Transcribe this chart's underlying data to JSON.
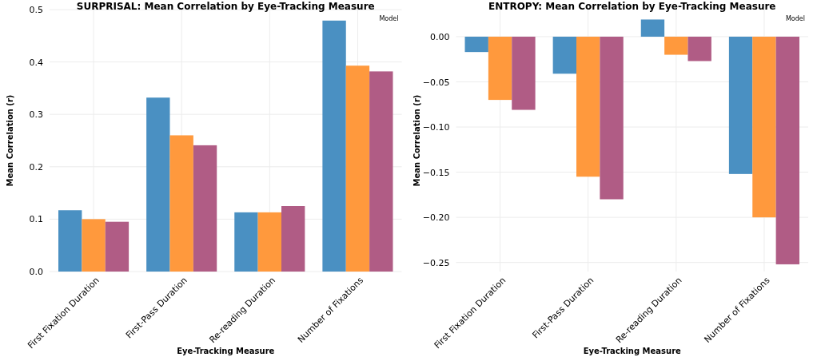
{
  "chart_data": [
    {
      "type": "bar",
      "title": "SURPRISAL: Mean Correlation by Eye-Tracking Measure",
      "xlabel": "Eye-Tracking Measure",
      "ylabel": "Mean Correlation (r)",
      "legend_title": "Model",
      "grid": true,
      "categories": [
        "First Fixation Duration",
        "First-Pass Duration",
        "Re-reading Duration",
        "Number of Fixations"
      ],
      "ylim": [
        0,
        0.5
      ],
      "yticks": [
        {
          "value": 0,
          "label": "0.0"
        },
        0.1,
        0.2,
        0.3,
        0.4,
        0.5
      ],
      "series": [
        {
          "color": "#4a90c2",
          "values": [
            0.117,
            0.332,
            0.113,
            0.479
          ]
        },
        {
          "color": "#ff993d",
          "values": [
            0.1,
            0.26,
            0.113,
            0.393
          ]
        },
        {
          "color": "#b05c85",
          "values": [
            0.095,
            0.241,
            0.125,
            0.382
          ]
        }
      ]
    },
    {
      "type": "bar",
      "title": "ENTROPY: Mean Correlation by Eye-Tracking Measure",
      "xlabel": "Eye-Tracking Measure",
      "ylabel": "Mean Correlation (r)",
      "legend_title": "Model",
      "grid": true,
      "categories": [
        "First Fixation Duration",
        "First-Pass Duration",
        "Re-reading Duration",
        "Number of Fixations"
      ],
      "ylim": [
        -0.26,
        0.03
      ],
      "yticks": [
        {
          "value": -0.25,
          "label": "−0.25"
        },
        {
          "value": -0.2,
          "label": "−0.20"
        },
        {
          "value": -0.15,
          "label": "−0.15"
        },
        {
          "value": -0.1,
          "label": "−0.10"
        },
        {
          "value": -0.05,
          "label": "−0.05"
        },
        {
          "value": 0,
          "label": "0.00"
        }
      ],
      "series": [
        {
          "color": "#4a90c2",
          "values": [
            -0.017,
            -0.041,
            0.019,
            -0.152
          ]
        },
        {
          "color": "#ff993d",
          "values": [
            -0.07,
            -0.155,
            -0.02,
            -0.2
          ]
        },
        {
          "color": "#b05c85",
          "values": [
            -0.081,
            -0.18,
            -0.027,
            -0.252
          ]
        }
      ]
    }
  ]
}
